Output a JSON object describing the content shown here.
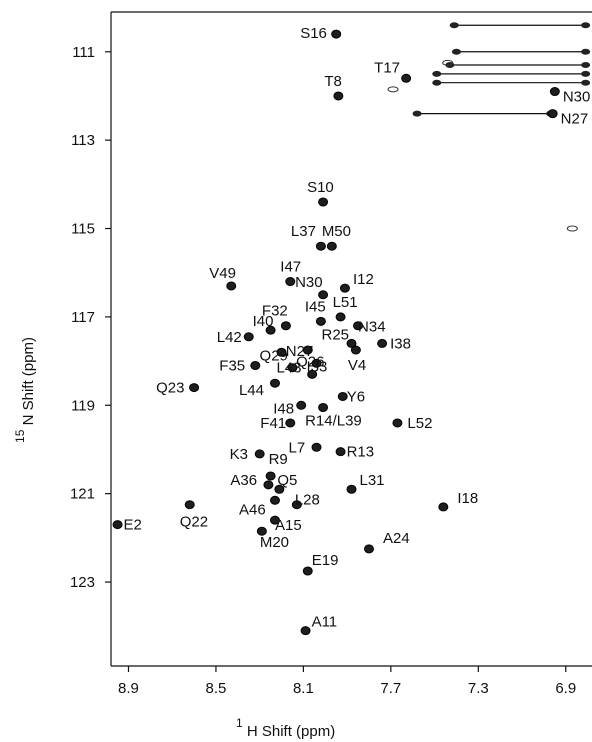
{
  "chart_data": {
    "type": "scatter",
    "title": "",
    "x_axis": {
      "label_sup": "1",
      "label": "H Shift  (ppm)",
      "range": [
        8.98,
        6.78
      ],
      "reversed": true,
      "ticks": [
        8.9,
        8.5,
        8.1,
        7.7,
        7.3,
        6.9
      ],
      "tick_labels": [
        "8.9",
        "8.5",
        "8.1",
        "7.7",
        "7.3",
        "6.9"
      ]
    },
    "y_axis": {
      "label_sup": "15",
      "label": "N Shift (ppm)",
      "range": [
        110.1,
        124.9
      ],
      "reversed": true,
      "ticks": [
        111,
        113,
        115,
        117,
        119,
        121,
        123
      ],
      "tick_labels": [
        "111",
        "113",
        "115",
        "117",
        "119",
        "121",
        "123"
      ]
    },
    "grid": false,
    "peaks": [
      {
        "label": "S16",
        "x": 7.95,
        "y": 110.6
      },
      {
        "label": "T17",
        "x": 7.63,
        "y": 111.6
      },
      {
        "label": "T8",
        "x": 7.94,
        "y": 112.0
      },
      {
        "label": "N30",
        "x": 6.95,
        "y": 111.9
      },
      {
        "label": "N27",
        "x": 6.96,
        "y": 112.4
      },
      {
        "label": "S10",
        "x": 8.01,
        "y": 114.4
      },
      {
        "label": "L37",
        "x": 8.02,
        "y": 115.4
      },
      {
        "label": "M50",
        "x": 7.97,
        "y": 115.4
      },
      {
        "label": "V49",
        "x": 8.43,
        "y": 116.3
      },
      {
        "label": "I47",
        "x": 8.16,
        "y": 116.2
      },
      {
        "label": "N30",
        "x": 8.01,
        "y": 116.5
      },
      {
        "label": "I12",
        "x": 7.91,
        "y": 116.35
      },
      {
        "label": "F32",
        "x": 8.18,
        "y": 117.2
      },
      {
        "label": "I45",
        "x": 8.02,
        "y": 117.1
      },
      {
        "label": "L51",
        "x": 7.93,
        "y": 117.0
      },
      {
        "label": "N34",
        "x": 7.85,
        "y": 117.2
      },
      {
        "label": "L42",
        "x": 8.35,
        "y": 117.45
      },
      {
        "label": "I40",
        "x": 8.25,
        "y": 117.3
      },
      {
        "label": "Q29",
        "x": 8.2,
        "y": 117.8
      },
      {
        "label": "N27",
        "x": 8.08,
        "y": 117.75
      },
      {
        "label": "R25",
        "x": 7.88,
        "y": 117.6
      },
      {
        "label": "I38",
        "x": 7.74,
        "y": 117.6
      },
      {
        "label": "V4",
        "x": 7.86,
        "y": 117.75
      },
      {
        "label": "F35",
        "x": 8.32,
        "y": 118.1
      },
      {
        "label": "L43",
        "x": 8.15,
        "y": 118.15
      },
      {
        "label": "I33",
        "x": 8.04,
        "y": 118.05
      },
      {
        "label": "Q23",
        "x": 8.6,
        "y": 118.6
      },
      {
        "label": "L44",
        "x": 8.23,
        "y": 118.5
      },
      {
        "label": "Q26",
        "x": 8.06,
        "y": 118.3
      },
      {
        "label": "Y6",
        "x": 7.92,
        "y": 118.8
      },
      {
        "label": "I48",
        "x": 8.11,
        "y": 119.0
      },
      {
        "label": "F41",
        "x": 8.16,
        "y": 119.4
      },
      {
        "label": "R14/L39",
        "x": 8.01,
        "y": 119.05
      },
      {
        "label": "L52",
        "x": 7.67,
        "y": 119.4
      },
      {
        "label": "K3",
        "x": 8.3,
        "y": 120.1
      },
      {
        "label": "L7",
        "x": 8.04,
        "y": 119.95
      },
      {
        "label": "R13",
        "x": 7.93,
        "y": 120.05
      },
      {
        "label": "R9",
        "x": 8.25,
        "y": 120.6
      },
      {
        "label": "A36",
        "x": 8.26,
        "y": 120.8
      },
      {
        "label": "Q5",
        "x": 8.21,
        "y": 120.9
      },
      {
        "label": "L31",
        "x": 7.88,
        "y": 120.9
      },
      {
        "label": "A46",
        "x": 8.23,
        "y": 121.15
      },
      {
        "label": "L28",
        "x": 8.13,
        "y": 121.25
      },
      {
        "label": "I18",
        "x": 7.46,
        "y": 121.3
      },
      {
        "label": "E2",
        "x": 8.95,
        "y": 121.7
      },
      {
        "label": "Q22",
        "x": 8.62,
        "y": 121.25
      },
      {
        "label": "A15",
        "x": 8.23,
        "y": 121.6
      },
      {
        "label": "M20",
        "x": 8.29,
        "y": 121.85
      },
      {
        "label": "A24",
        "x": 7.8,
        "y": 122.25
      },
      {
        "label": "E19",
        "x": 8.08,
        "y": 122.75
      },
      {
        "label": "A11",
        "x": 8.09,
        "y": 124.1
      }
    ],
    "side_chain_pairs": [
      {
        "y": 110.4,
        "x1": 7.41,
        "x2": 6.8
      },
      {
        "y": 111.0,
        "x1": 7.4,
        "x2": 6.8
      },
      {
        "y": 111.3,
        "x1": 7.43,
        "x2": 6.8
      },
      {
        "y": 111.5,
        "x1": 7.49,
        "x2": 6.8
      },
      {
        "y": 111.7,
        "x1": 7.49,
        "x2": 6.8
      },
      {
        "y": 112.4,
        "x1": 7.58,
        "x2": 6.96
      }
    ],
    "extra_peaks": [
      {
        "x": 7.69,
        "y": 111.85
      },
      {
        "x": 6.87,
        "y": 115.0
      },
      {
        "x": 7.44,
        "y": 111.25
      }
    ]
  }
}
